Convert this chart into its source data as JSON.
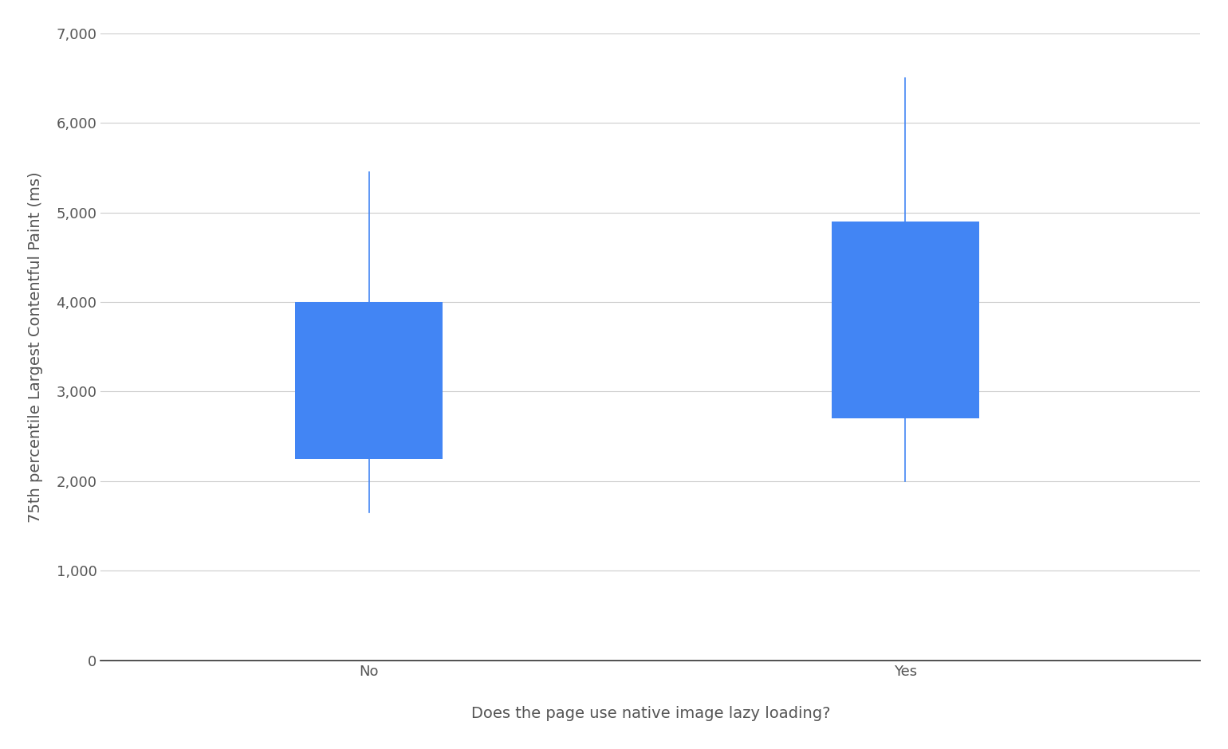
{
  "categories": [
    "No",
    "Yes"
  ],
  "p10": [
    1650,
    2000
  ],
  "p25": [
    2250,
    2700
  ],
  "p75": [
    4000,
    4900
  ],
  "p90": [
    5450,
    6500
  ],
  "box_color": "#4285F4",
  "whisker_color": "#4285F4",
  "ylabel": "75th percentile Largest Contentful Paint (ms)",
  "xlabel": "Does the page use native image lazy loading?",
  "ylim": [
    0,
    7000
  ],
  "yticks": [
    0,
    1000,
    2000,
    3000,
    4000,
    5000,
    6000,
    7000
  ],
  "ytick_labels": [
    "0",
    "1,000",
    "2,000",
    "3,000",
    "4,000",
    "5,000",
    "6,000",
    "7,000"
  ],
  "background_color": "#ffffff",
  "grid_color": "#cccccc",
  "label_fontsize": 14,
  "tick_fontsize": 13,
  "box_width": 0.55,
  "bar_positions": [
    1,
    3
  ]
}
